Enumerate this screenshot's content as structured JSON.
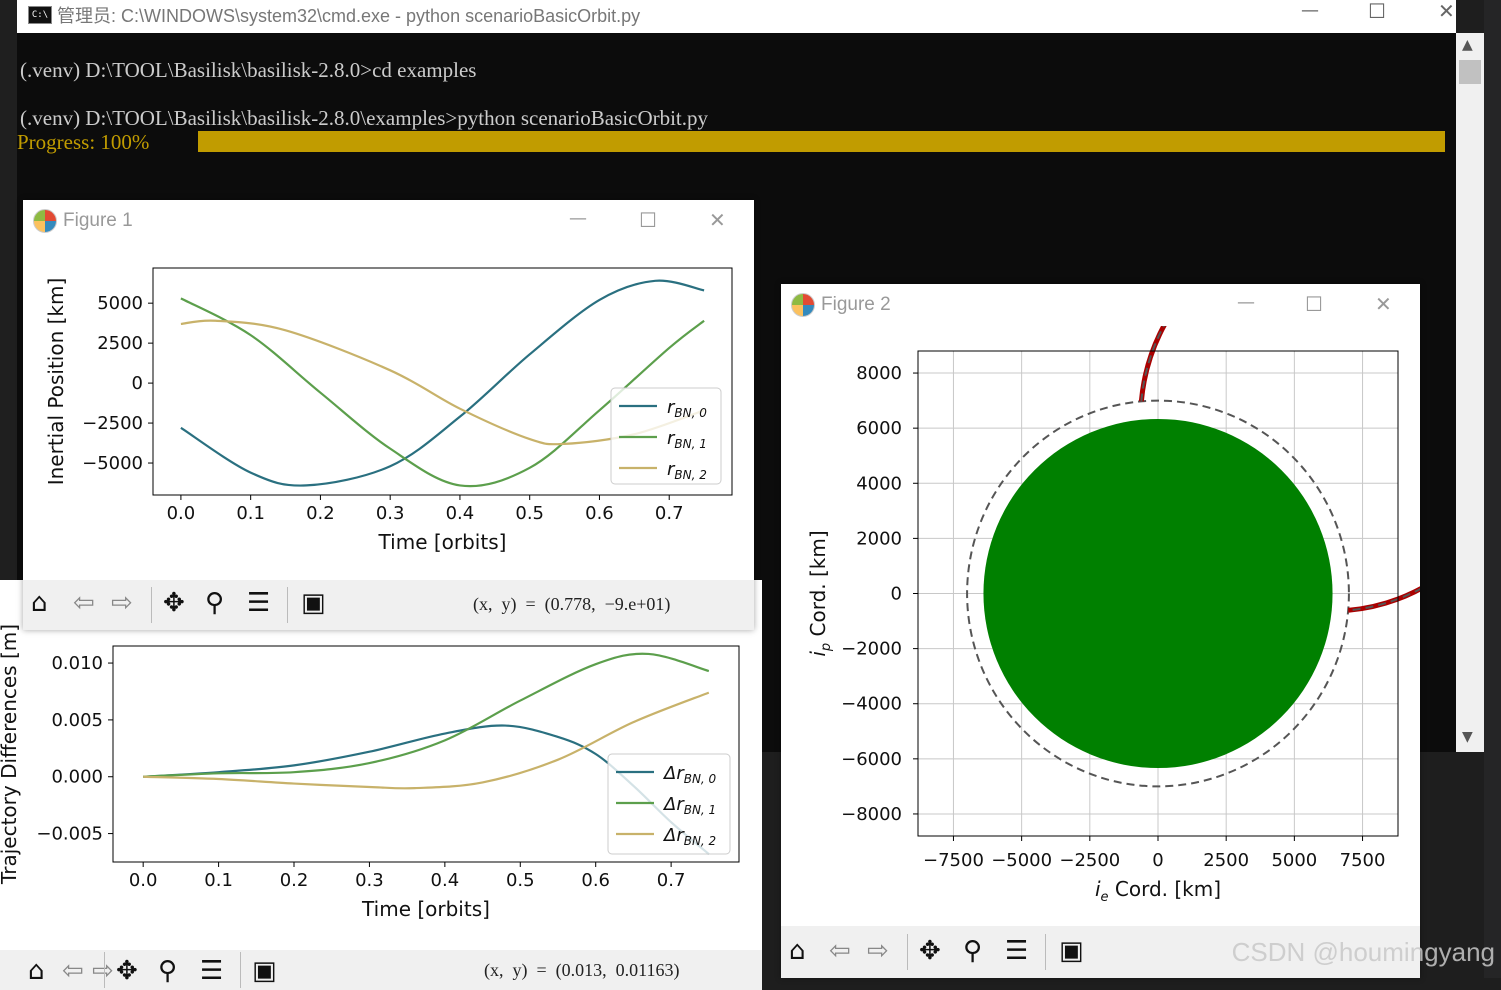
{
  "console": {
    "title": "管理员: C:\\WINDOWS\\system32\\cmd.exe - python  scenarioBasicOrbit.py",
    "line1": "(.venv) D:\\TOOL\\Basilisk\\basilisk-2.8.0>cd examples",
    "line2": "(.venv) D:\\TOOL\\Basilisk\\basilisk-2.8.0\\examples>python scenarioBasicOrbit.py",
    "progress_label": "Progress: 100%",
    "progress": 1.0,
    "progress_color": "#c19c00"
  },
  "figure1": {
    "title": "Figure 1",
    "coords": "(x,  y)  =  (0.778,  −9.e+01)",
    "chart_data": {
      "type": "line",
      "xlabel": "Time [orbits]",
      "ylabel": "Inertial Position [km]",
      "xlim": [
        -0.04,
        0.79
      ],
      "ylim": [
        -7000,
        7200
      ],
      "xticks": [
        "0.0",
        "0.1",
        "0.2",
        "0.3",
        "0.4",
        "0.5",
        "0.6",
        "0.7"
      ],
      "yticks": [
        "5000",
        "2500",
        "0",
        "−2500",
        "−5000"
      ],
      "legend": "center-right",
      "series": [
        {
          "name": "r_BN,0",
          "color": "#2a7080",
          "x": [
            0,
            0.1,
            0.18,
            0.3,
            0.4,
            0.5,
            0.6,
            0.68,
            0.75
          ],
          "values": [
            -2800,
            -5600,
            -6400,
            -5200,
            -2100,
            1800,
            5200,
            6400,
            5800
          ]
        },
        {
          "name": "r_BN,1",
          "color": "#5c9f4c",
          "x": [
            0,
            0.1,
            0.2,
            0.3,
            0.4,
            0.5,
            0.6,
            0.7,
            0.75
          ],
          "values": [
            5300,
            3000,
            -600,
            -4100,
            -6400,
            -5300,
            -1700,
            2200,
            3900
          ]
        },
        {
          "name": "r_BN,2",
          "color": "#c8b26a",
          "x": [
            0,
            0.05,
            0.15,
            0.3,
            0.4,
            0.5,
            0.55,
            0.65,
            0.75
          ],
          "values": [
            3700,
            3900,
            3300,
            800,
            -1600,
            -3500,
            -3800,
            -3200,
            -1700
          ]
        }
      ],
      "legend_labels": [
        "r",
        "r",
        "r"
      ],
      "legend_subs": [
        "BN, 0",
        "BN, 1",
        "BN, 2"
      ]
    }
  },
  "figure3": {
    "coords": "(x,  y)  =  (0.013,  0.01163)",
    "chart_data": {
      "type": "line",
      "xlabel": "Time [orbits]",
      "ylabel": "Trajectory Differences [m]",
      "xlim": [
        -0.04,
        0.79
      ],
      "ylim": [
        -0.0075,
        0.0115
      ],
      "xticks": [
        "0.0",
        "0.1",
        "0.2",
        "0.3",
        "0.4",
        "0.5",
        "0.6",
        "0.7"
      ],
      "yticks": [
        "0.010",
        "0.005",
        "0.000",
        "−0.005"
      ],
      "legend": "lower-right",
      "series": [
        {
          "name": "Δr_BN,0",
          "color": "#2a7080",
          "x": [
            0,
            0.1,
            0.2,
            0.3,
            0.4,
            0.48,
            0.55,
            0.6,
            0.65,
            0.7,
            0.75
          ],
          "values": [
            0,
            0.0004,
            0.001,
            0.0022,
            0.0038,
            0.0045,
            0.0035,
            0.002,
            -0.0008,
            -0.004,
            -0.0068
          ]
        },
        {
          "name": "Δr_BN,1",
          "color": "#5c9f4c",
          "x": [
            0,
            0.1,
            0.2,
            0.3,
            0.4,
            0.5,
            0.6,
            0.67,
            0.75
          ],
          "values": [
            0,
            0.0003,
            0.0004,
            0.0012,
            0.0032,
            0.0067,
            0.0099,
            0.0108,
            0.0093
          ]
        },
        {
          "name": "Δr_BN,2",
          "color": "#c8b26a",
          "x": [
            0,
            0.1,
            0.2,
            0.3,
            0.36,
            0.45,
            0.55,
            0.65,
            0.75
          ],
          "values": [
            0,
            -0.0002,
            -0.0006,
            -0.0009,
            -0.001,
            -0.0005,
            0.0015,
            0.0048,
            0.0074
          ]
        }
      ],
      "legend_labels": [
        "Δr",
        "Δr",
        "Δr"
      ],
      "legend_subs": [
        "BN, 0",
        "BN, 1",
        "BN, 2"
      ]
    }
  },
  "figure2": {
    "title": "Figure 2",
    "chart_data": {
      "type": "line",
      "xlabel": "Cord. [km]",
      "xlabel_var": "i",
      "xlabel_sub": "e",
      "ylabel": "Cord. [km]",
      "ylabel_var": "i",
      "ylabel_sub": "p",
      "xlim": [
        -8800,
        8800
      ],
      "ylim": [
        -8800,
        8800
      ],
      "xticks": [
        "−7500",
        "−5000",
        "−2500",
        "0",
        "2500",
        "5000",
        "7500"
      ],
      "yticks": [
        "8000",
        "6000",
        "4000",
        "2000",
        "0",
        "−2000",
        "−4000",
        "−6000",
        "−8000"
      ],
      "grid": true,
      "planet_radius_km": 6400,
      "planet_color": "#008000",
      "orbit_radius_km": 7000,
      "orbit_color": "#aa0000",
      "dashed_color": "#555555",
      "traveled_arc_deg": [
        95,
        355
      ]
    }
  },
  "toolbar_icons": [
    "home-icon",
    "back-icon",
    "forward-icon",
    "pan-icon",
    "zoom-icon",
    "configure-icon",
    "save-icon"
  ],
  "watermark": "CSDN @houmingyang"
}
